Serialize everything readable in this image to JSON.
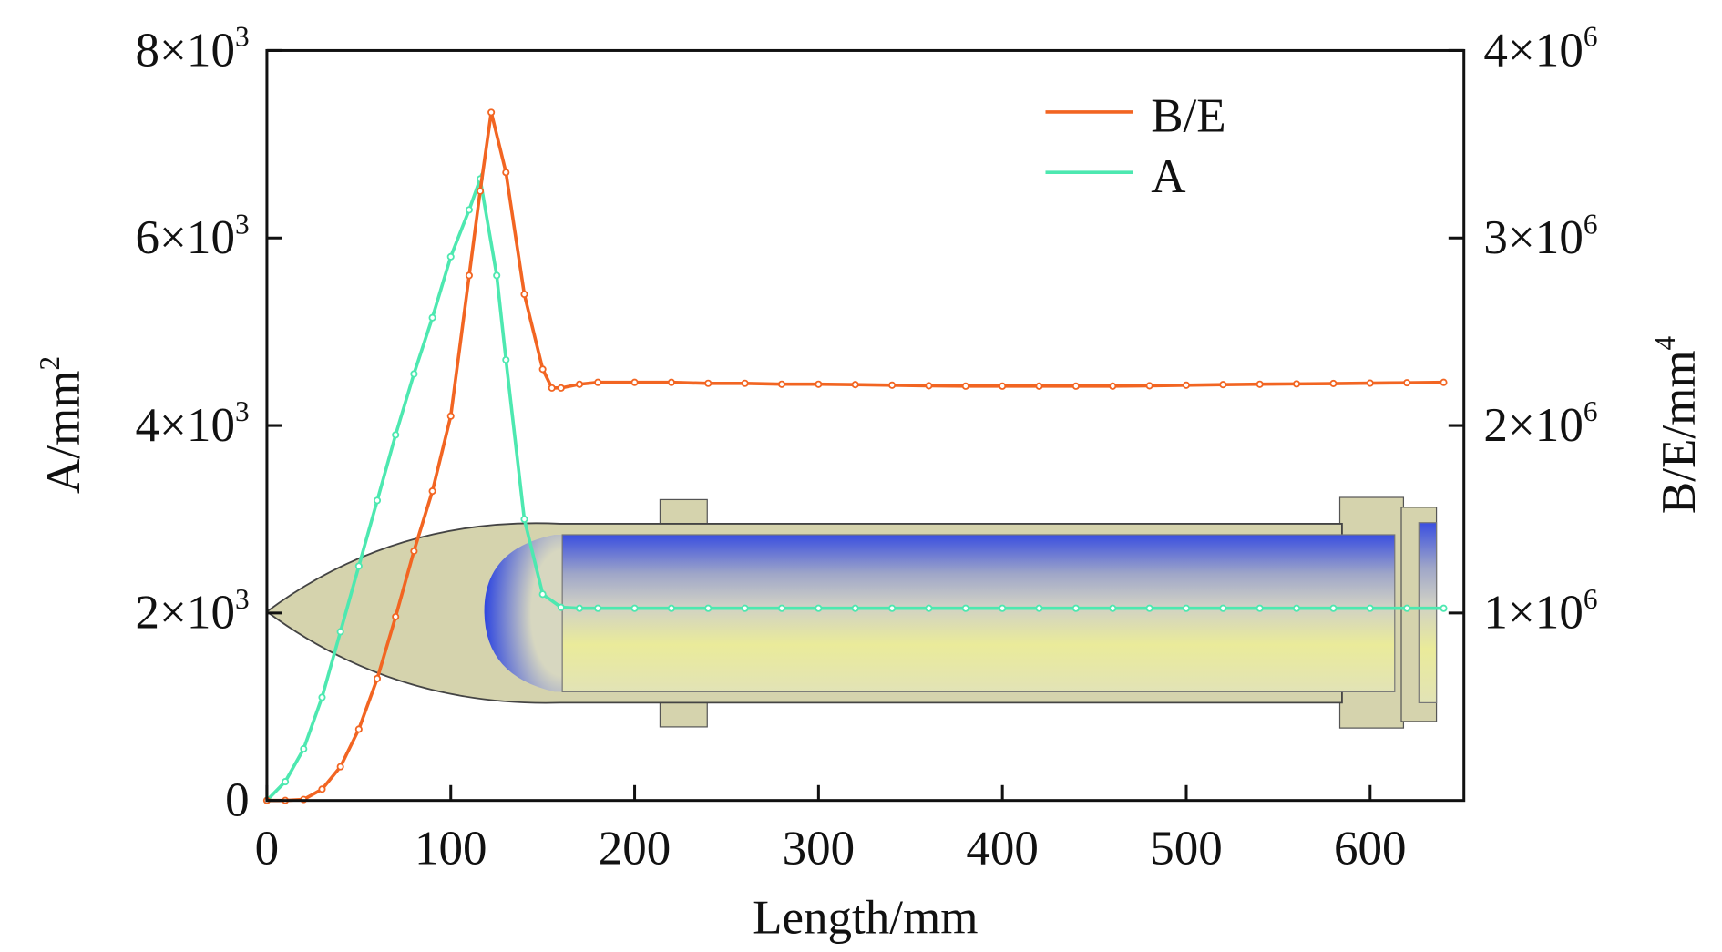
{
  "chart_data": {
    "type": "line",
    "title": "",
    "xlabel": "Length/mm",
    "ylabel_left": "A/mm",
    "ylabel_left_sup": "2",
    "ylabel_right": "B/E/mm",
    "ylabel_right_sup": "4",
    "xlim": [
      0,
      651
    ],
    "ylim_left": [
      0,
      8000
    ],
    "ylim_right": [
      0,
      4000000
    ],
    "x_ticks": [
      0,
      100,
      200,
      300,
      400,
      500,
      600
    ],
    "x_tick_labels": [
      "0",
      "100",
      "200",
      "300",
      "400",
      "500",
      "600"
    ],
    "y_left_ticks": [
      0,
      2000,
      4000,
      6000,
      8000
    ],
    "y_left_tick_labels": [
      {
        "base": "0",
        "sup": ""
      },
      {
        "base": "2×10",
        "sup": "3"
      },
      {
        "base": "4×10",
        "sup": "3"
      },
      {
        "base": "6×10",
        "sup": "3"
      },
      {
        "base": "8×10",
        "sup": "3"
      }
    ],
    "y_right_ticks": [
      1000000,
      2000000,
      3000000,
      4000000
    ],
    "y_right_tick_labels": [
      {
        "base": "1×10",
        "sup": "6"
      },
      {
        "base": "2×10",
        "sup": "6"
      },
      {
        "base": "3×10",
        "sup": "6"
      },
      {
        "base": "4×10",
        "sup": "6"
      }
    ],
    "legend_position": "top-right",
    "series": [
      {
        "name": "B/E",
        "axis": "right",
        "color": "#f26522",
        "x": [
          0,
          10,
          20,
          30,
          40,
          50,
          60,
          70,
          80,
          90,
          100,
          110,
          116,
          122,
          130,
          140,
          150,
          155,
          160,
          170,
          180,
          200,
          220,
          240,
          260,
          280,
          300,
          320,
          340,
          360,
          380,
          400,
          420,
          440,
          460,
          480,
          500,
          520,
          540,
          560,
          580,
          600,
          620,
          640
        ],
        "y": [
          0,
          0,
          5000,
          60000,
          180000,
          380000,
          650000,
          980000,
          1330000,
          1650000,
          2050000,
          2800000,
          3250000,
          3670000,
          3350000,
          2700000,
          2300000,
          2200000,
          2200000,
          2220000,
          2230000,
          2230000,
          2230000,
          2225000,
          2225000,
          2220000,
          2220000,
          2218000,
          2215000,
          2212000,
          2210000,
          2210000,
          2210000,
          2210000,
          2210000,
          2212000,
          2215000,
          2218000,
          2220000,
          2222000,
          2224000,
          2226000,
          2228000,
          2230000
        ]
      },
      {
        "name": "A",
        "axis": "left",
        "color": "#4de8b0",
        "x": [
          0,
          10,
          20,
          30,
          40,
          50,
          60,
          70,
          80,
          90,
          100,
          110,
          116,
          125,
          130,
          140,
          150,
          160,
          170,
          180,
          200,
          220,
          240,
          260,
          280,
          300,
          320,
          340,
          360,
          380,
          400,
          420,
          440,
          460,
          480,
          500,
          520,
          540,
          560,
          580,
          600,
          620,
          640
        ],
        "y": [
          0,
          200,
          550,
          1100,
          1800,
          2500,
          3200,
          3900,
          4550,
          5150,
          5800,
          6300,
          6630,
          5600,
          4700,
          3000,
          2200,
          2060,
          2050,
          2050,
          2050,
          2050,
          2050,
          2050,
          2050,
          2050,
          2050,
          2050,
          2050,
          2050,
          2050,
          2050,
          2050,
          2050,
          2050,
          2050,
          2050,
          2050,
          2050,
          2050,
          2050,
          2050,
          2050
        ]
      }
    ]
  }
}
